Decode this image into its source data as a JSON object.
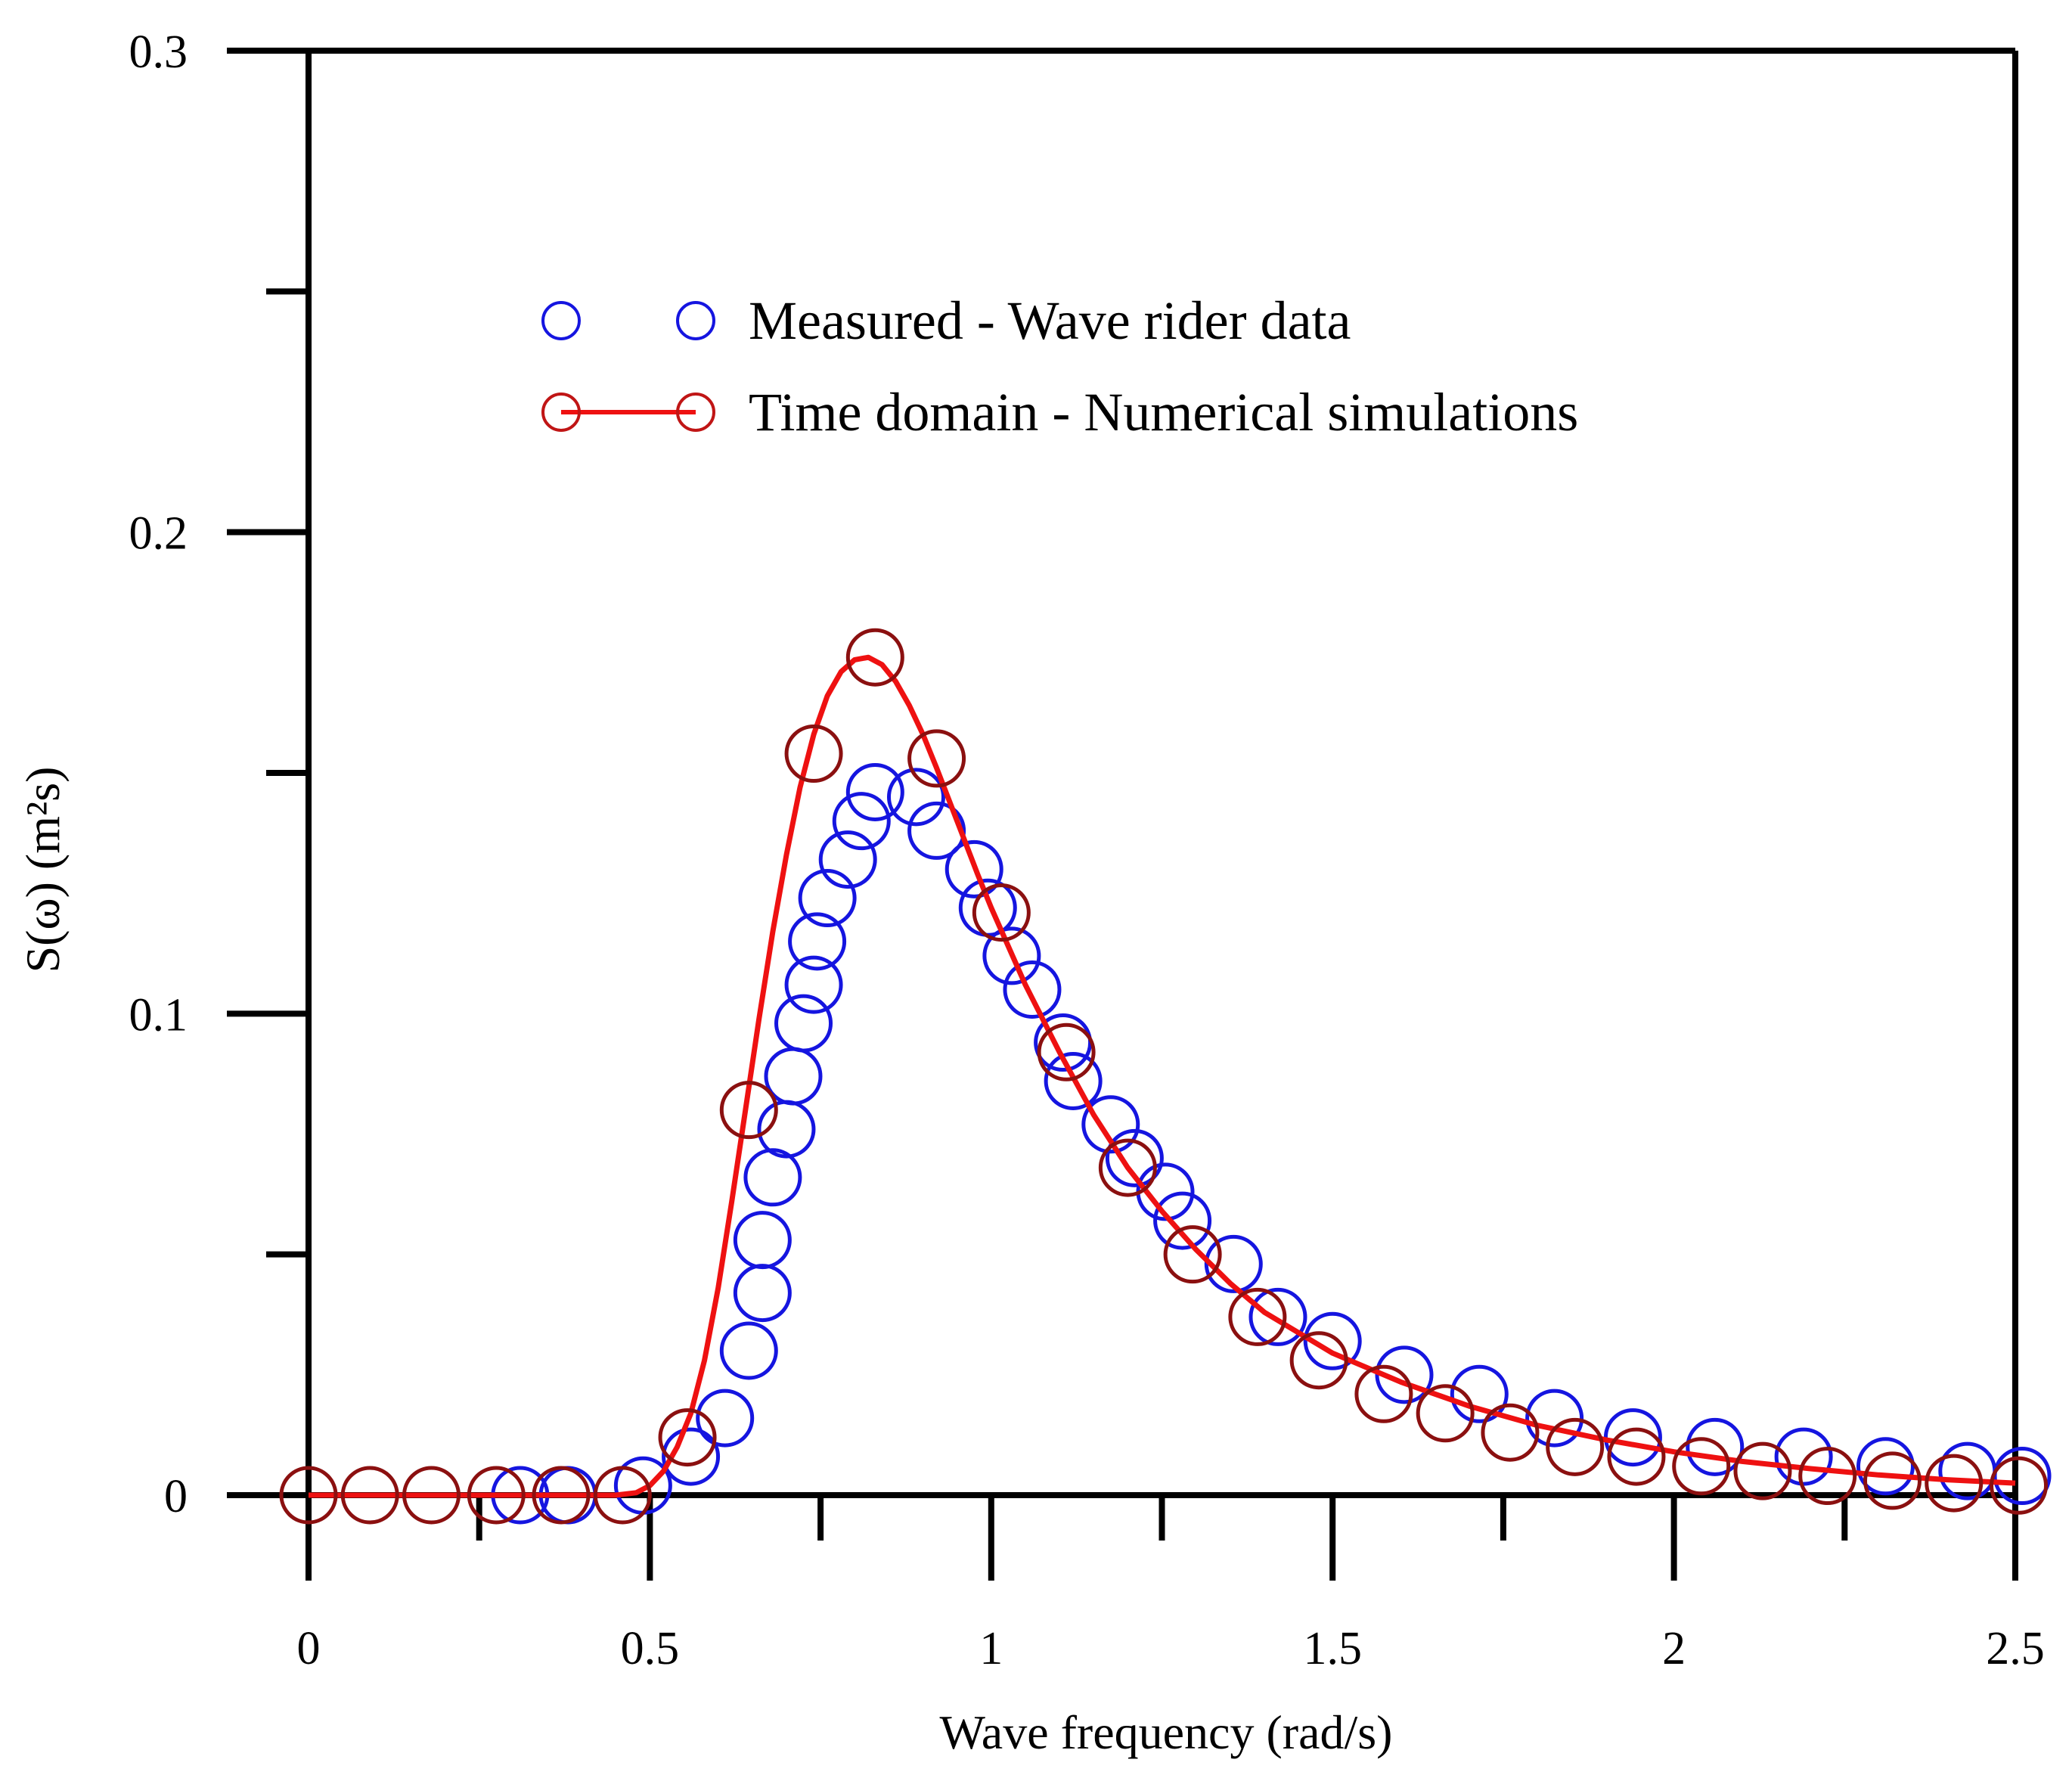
{
  "chart_data": {
    "type": "scatter",
    "xlabel": "Wave frequency (rad/s)",
    "ylabel": "S(ω) (m²s)",
    "xlim": [
      0,
      2.5
    ],
    "ylim": [
      0,
      0.3
    ],
    "x_ticks": [
      0,
      0.5,
      1,
      1.5,
      2,
      2.5
    ],
    "x_tick_labels": [
      "0",
      "0.5",
      "1",
      "1.5",
      "2",
      "2.5"
    ],
    "y_ticks": [
      0,
      0.1,
      0.2,
      0.3
    ],
    "y_tick_labels": [
      "0",
      "0.1",
      "0.2",
      "0.3"
    ],
    "grid": false,
    "legend_position": "upper-center",
    "series": [
      {
        "name": "Measured - Wave rider data",
        "kind": "markers",
        "color": "#1515e0",
        "x": [
          0.31,
          0.38,
          0.49,
          0.56,
          0.61,
          0.645,
          0.665,
          0.665,
          0.68,
          0.7,
          0.71,
          0.725,
          0.74,
          0.745,
          0.76,
          0.79,
          0.81,
          0.83,
          0.89,
          0.92,
          0.975,
          0.995,
          1.03,
          1.06,
          1.105,
          1.12,
          1.175,
          1.21,
          1.255,
          1.28,
          1.355,
          1.42,
          1.5,
          1.605,
          1.715,
          1.825,
          1.94,
          2.06,
          2.19,
          2.31,
          2.43,
          2.51
        ],
        "y": [
          0.0,
          0.0,
          0.002,
          0.008,
          0.016,
          0.03,
          0.042,
          0.053,
          0.066,
          0.076,
          0.087,
          0.098,
          0.106,
          0.115,
          0.124,
          0.132,
          0.14,
          0.146,
          0.145,
          0.138,
          0.13,
          0.122,
          0.112,
          0.105,
          0.094,
          0.086,
          0.077,
          0.07,
          0.063,
          0.057,
          0.048,
          0.037,
          0.032,
          0.025,
          0.021,
          0.016,
          0.012,
          0.01,
          0.008,
          0.006,
          0.005,
          0.004
        ]
      },
      {
        "name": "Time domain - Numerical simulations",
        "kind": "markers+line",
        "color": "#ee1111",
        "marker_color": "#8b1010",
        "x": [
          0.0,
          0.09,
          0.18,
          0.275,
          0.37,
          0.46,
          0.555,
          0.645,
          0.74,
          0.83,
          0.92,
          1.015,
          1.11,
          1.2,
          1.295,
          1.39,
          1.48,
          1.575,
          1.665,
          1.76,
          1.855,
          1.945,
          2.04,
          2.13,
          2.225,
          2.32,
          2.41,
          2.505
        ],
        "y": [
          0.0,
          0.0,
          0.0,
          0.0,
          0.0,
          0.0,
          0.012,
          0.08,
          0.154,
          0.174,
          0.153,
          0.121,
          0.092,
          0.068,
          0.05,
          0.037,
          0.028,
          0.021,
          0.017,
          0.013,
          0.01,
          0.008,
          0.006,
          0.005,
          0.004,
          0.003,
          0.0025,
          0.002
        ],
        "curve_x": [
          0,
          0.1,
          0.2,
          0.3,
          0.4,
          0.45,
          0.48,
          0.5,
          0.52,
          0.54,
          0.56,
          0.58,
          0.6,
          0.62,
          0.64,
          0.66,
          0.68,
          0.7,
          0.72,
          0.74,
          0.76,
          0.78,
          0.8,
          0.82,
          0.84,
          0.86,
          0.88,
          0.9,
          0.92,
          0.95,
          0.98,
          1.0,
          1.05,
          1.1,
          1.15,
          1.2,
          1.25,
          1.3,
          1.35,
          1.4,
          1.5,
          1.6,
          1.7,
          1.8,
          1.9,
          2.0,
          2.1,
          2.2,
          2.3,
          2.4,
          2.5
        ],
        "curve_y": [
          0,
          0,
          0,
          0,
          0,
          0,
          0.0005,
          0.002,
          0.005,
          0.01,
          0.017,
          0.028,
          0.043,
          0.061,
          0.08,
          0.099,
          0.117,
          0.133,
          0.147,
          0.158,
          0.166,
          0.171,
          0.1735,
          0.174,
          0.1725,
          0.169,
          0.164,
          0.158,
          0.151,
          0.14,
          0.129,
          0.122,
          0.106,
          0.092,
          0.079,
          0.068,
          0.059,
          0.051,
          0.044,
          0.038,
          0.0295,
          0.0235,
          0.0185,
          0.0145,
          0.0115,
          0.009,
          0.007,
          0.0055,
          0.0042,
          0.0032,
          0.0025
        ]
      }
    ]
  }
}
